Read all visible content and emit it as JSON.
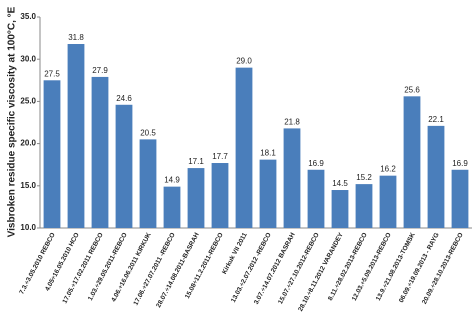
{
  "chart_data": {
    "type": "bar",
    "y_label": "Visbroken residue specific viscosity at 100°C, °E",
    "categories": [
      "7.3.÷3.05.2010 REBCO",
      "4.05÷16.05.2010 HCO",
      "17.05.÷17.02.2011 REBCO",
      "1.03.÷29.05.2011-REBCO",
      "4.06.÷16.06.2011 KIRKUK",
      "17.06.÷27.07.2011 -REBCO",
      "28.07.÷14.08.2011-BASRAH",
      "15.08÷11.2.2011-REBCO",
      "Kirkuk VII 2011",
      "13.03.÷2.07.2012 -REBCO",
      "3.07.÷14.07.2012 BASRAH",
      "15.07.÷27.10.2012-REBCO",
      "28.10.÷8.11.2012 VARANDEY",
      "8.11.÷28.02.2013-REBCO",
      "12.03.÷5.09.2013-REBCO",
      "13.9.÷21.08.2013-TOMSK",
      "06.09.÷19.09.2013 - RAYG",
      "20.09.÷28.10.2013-REBCO"
    ],
    "values": [
      27.5,
      31.8,
      27.9,
      24.6,
      20.5,
      14.9,
      17.1,
      17.7,
      29.0,
      18.1,
      21.8,
      16.9,
      14.5,
      15.2,
      16.2,
      25.6,
      22.1,
      16.9
    ],
    "value_labels": [
      "27.5",
      "31.8",
      "27.9",
      "24.6",
      "20.5",
      "14.9",
      "17.1",
      "17.7",
      "29.0",
      "18.1",
      "21.8",
      "16.9",
      "14.5",
      "15.2",
      "16.2",
      "25.6",
      "22.1",
      "16.9"
    ],
    "color": "#4a7ebb",
    "ylim": [
      10,
      35
    ],
    "yticks": [
      {
        "value": 10,
        "label": "10.0"
      },
      {
        "value": 15,
        "label": "15.0"
      },
      {
        "value": 20,
        "label": "20.0"
      },
      {
        "value": 25,
        "label": "25.0"
      },
      {
        "value": 30,
        "label": "30.0"
      },
      {
        "value": 35,
        "label": "35.0"
      }
    ]
  }
}
